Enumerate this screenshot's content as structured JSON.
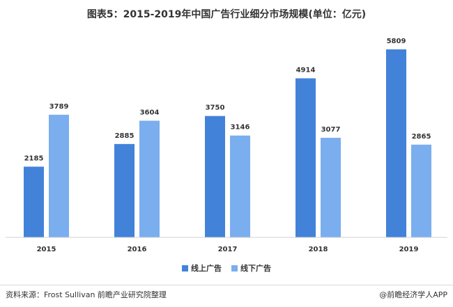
{
  "title": "图表5：2015-2019年中国广告行业细分市场规模(单位：亿元)",
  "legend": [
    {
      "label": "线上广告",
      "color": "#4382d9"
    },
    {
      "label": "线下广告",
      "color": "#7aaeee"
    }
  ],
  "source": "资料来源：Frost Sullivan 前瞻产业研究院整理",
  "brand": "@前瞻经济学人APP",
  "chart_data": {
    "type": "bar",
    "title": "图表5：2015-2019年中国广告行业细分市场规模(单位：亿元)",
    "categories": [
      "2015",
      "2016",
      "2017",
      "2018",
      "2019"
    ],
    "series": [
      {
        "name": "线上广告",
        "values": [
          2185,
          2885,
          3750,
          4914,
          5809
        ],
        "color": "#4382d9"
      },
      {
        "name": "线下广告",
        "values": [
          3789,
          3604,
          3146,
          3077,
          2865
        ],
        "color": "#7aaeee"
      }
    ],
    "ylim": [
      0,
      6000
    ],
    "grid": false,
    "legend_position": "bottom"
  }
}
